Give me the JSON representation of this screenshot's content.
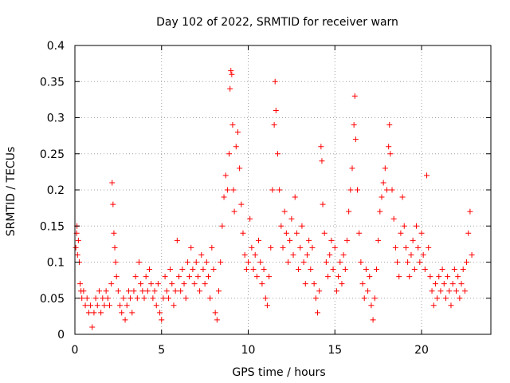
{
  "chart_data": {
    "type": "scatter",
    "title": "Day 102 of 2022, SRMTID for receiver warn",
    "xlabel": "GPS time / hours",
    "ylabel": "SRMTID / TECUs",
    "xlim": [
      0,
      24
    ],
    "ylim": [
      0,
      0.4
    ],
    "x_ticks": [
      0,
      5,
      10,
      15,
      20
    ],
    "x_tick_labels": [
      "0",
      "5",
      "10",
      "15",
      "20"
    ],
    "y_ticks": [
      0,
      0.05,
      0.1,
      0.15,
      0.2,
      0.25,
      0.3,
      0.35,
      0.4
    ],
    "y_tick_labels": [
      "0",
      "0.05",
      "0.1",
      "0.15",
      "0.2",
      "0.25",
      "0.3",
      "0.35",
      "0.4"
    ],
    "grid": true,
    "marker": "+",
    "series": [
      {
        "name": "SRMTID",
        "color": "#ff0000",
        "points": [
          [
            0.05,
            0.12
          ],
          [
            0.1,
            0.14
          ],
          [
            0.12,
            0.15
          ],
          [
            0.15,
            0.11
          ],
          [
            0.2,
            0.13
          ],
          [
            0.25,
            0.1
          ],
          [
            0.3,
            0.07
          ],
          [
            0.35,
            0.06
          ],
          [
            0.4,
            0.05
          ],
          [
            0.5,
            0.06
          ],
          [
            0.6,
            0.04
          ],
          [
            0.7,
            0.05
          ],
          [
            0.8,
            0.03
          ],
          [
            0.9,
            0.04
          ],
          [
            1.0,
            0.01
          ],
          [
            1.1,
            0.03
          ],
          [
            1.2,
            0.05
          ],
          [
            1.3,
            0.04
          ],
          [
            1.4,
            0.06
          ],
          [
            1.5,
            0.03
          ],
          [
            1.6,
            0.05
          ],
          [
            1.7,
            0.04
          ],
          [
            1.8,
            0.06
          ],
          [
            1.9,
            0.05
          ],
          [
            2.0,
            0.04
          ],
          [
            2.1,
            0.07
          ],
          [
            2.15,
            0.21
          ],
          [
            2.2,
            0.18
          ],
          [
            2.25,
            0.14
          ],
          [
            2.3,
            0.12
          ],
          [
            2.35,
            0.1
          ],
          [
            2.4,
            0.08
          ],
          [
            2.5,
            0.06
          ],
          [
            2.6,
            0.04
          ],
          [
            2.7,
            0.03
          ],
          [
            2.8,
            0.05
          ],
          [
            2.9,
            0.02
          ],
          [
            3.0,
            0.04
          ],
          [
            3.1,
            0.06
          ],
          [
            3.2,
            0.05
          ],
          [
            3.3,
            0.03
          ],
          [
            3.4,
            0.06
          ],
          [
            3.5,
            0.08
          ],
          [
            3.6,
            0.05
          ],
          [
            3.7,
            0.1
          ],
          [
            3.8,
            0.07
          ],
          [
            3.9,
            0.06
          ],
          [
            4.0,
            0.05
          ],
          [
            4.1,
            0.08
          ],
          [
            4.2,
            0.06
          ],
          [
            4.3,
            0.09
          ],
          [
            4.4,
            0.07
          ],
          [
            4.5,
            0.05
          ],
          [
            4.6,
            0.06
          ],
          [
            4.7,
            0.04
          ],
          [
            4.8,
            0.07
          ],
          [
            4.9,
            0.03
          ],
          [
            5.0,
            0.02
          ],
          [
            5.1,
            0.05
          ],
          [
            5.2,
            0.08
          ],
          [
            5.3,
            0.06
          ],
          [
            5.4,
            0.05
          ],
          [
            5.5,
            0.09
          ],
          [
            5.6,
            0.07
          ],
          [
            5.7,
            0.04
          ],
          [
            5.8,
            0.06
          ],
          [
            5.9,
            0.13
          ],
          [
            6.0,
            0.08
          ],
          [
            6.1,
            0.06
          ],
          [
            6.2,
            0.09
          ],
          [
            6.3,
            0.07
          ],
          [
            6.4,
            0.05
          ],
          [
            6.5,
            0.1
          ],
          [
            6.6,
            0.08
          ],
          [
            6.7,
            0.12
          ],
          [
            6.8,
            0.09
          ],
          [
            6.9,
            0.07
          ],
          [
            7.0,
            0.1
          ],
          [
            7.1,
            0.08
          ],
          [
            7.2,
            0.06
          ],
          [
            7.3,
            0.11
          ],
          [
            7.4,
            0.09
          ],
          [
            7.5,
            0.07
          ],
          [
            7.6,
            0.1
          ],
          [
            7.7,
            0.08
          ],
          [
            7.8,
            0.05
          ],
          [
            7.9,
            0.12
          ],
          [
            8.0,
            0.09
          ],
          [
            8.1,
            0.03
          ],
          [
            8.2,
            0.02
          ],
          [
            8.3,
            0.06
          ],
          [
            8.4,
            0.1
          ],
          [
            8.5,
            0.15
          ],
          [
            8.6,
            0.19
          ],
          [
            8.7,
            0.22
          ],
          [
            8.8,
            0.2
          ],
          [
            8.9,
            0.25
          ],
          [
            8.95,
            0.34
          ],
          [
            9.0,
            0.365
          ],
          [
            9.05,
            0.36
          ],
          [
            9.1,
            0.29
          ],
          [
            9.15,
            0.2
          ],
          [
            9.2,
            0.17
          ],
          [
            9.3,
            0.26
          ],
          [
            9.4,
            0.28
          ],
          [
            9.5,
            0.23
          ],
          [
            9.6,
            0.18
          ],
          [
            9.7,
            0.14
          ],
          [
            9.8,
            0.11
          ],
          [
            9.9,
            0.09
          ],
          [
            10.0,
            0.1
          ],
          [
            10.1,
            0.16
          ],
          [
            10.2,
            0.12
          ],
          [
            10.3,
            0.09
          ],
          [
            10.4,
            0.11
          ],
          [
            10.5,
            0.08
          ],
          [
            10.6,
            0.13
          ],
          [
            10.7,
            0.1
          ],
          [
            10.8,
            0.07
          ],
          [
            10.9,
            0.09
          ],
          [
            11.0,
            0.05
          ],
          [
            11.1,
            0.04
          ],
          [
            11.2,
            0.08
          ],
          [
            11.3,
            0.12
          ],
          [
            11.4,
            0.2
          ],
          [
            11.5,
            0.29
          ],
          [
            11.55,
            0.35
          ],
          [
            11.6,
            0.31
          ],
          [
            11.7,
            0.25
          ],
          [
            11.8,
            0.2
          ],
          [
            11.9,
            0.15
          ],
          [
            12.0,
            0.12
          ],
          [
            12.1,
            0.17
          ],
          [
            12.2,
            0.14
          ],
          [
            12.3,
            0.1
          ],
          [
            12.4,
            0.13
          ],
          [
            12.5,
            0.16
          ],
          [
            12.6,
            0.11
          ],
          [
            12.7,
            0.19
          ],
          [
            12.8,
            0.14
          ],
          [
            12.9,
            0.09
          ],
          [
            13.0,
            0.12
          ],
          [
            13.1,
            0.15
          ],
          [
            13.2,
            0.1
          ],
          [
            13.3,
            0.07
          ],
          [
            13.4,
            0.11
          ],
          [
            13.5,
            0.13
          ],
          [
            13.6,
            0.09
          ],
          [
            13.7,
            0.12
          ],
          [
            13.8,
            0.07
          ],
          [
            13.9,
            0.05
          ],
          [
            14.0,
            0.03
          ],
          [
            14.1,
            0.06
          ],
          [
            14.2,
            0.26
          ],
          [
            14.25,
            0.24
          ],
          [
            14.3,
            0.18
          ],
          [
            14.4,
            0.14
          ],
          [
            14.5,
            0.1
          ],
          [
            14.6,
            0.08
          ],
          [
            14.7,
            0.11
          ],
          [
            14.8,
            0.13
          ],
          [
            14.9,
            0.09
          ],
          [
            15.0,
            0.12
          ],
          [
            15.1,
            0.06
          ],
          [
            15.2,
            0.08
          ],
          [
            15.3,
            0.1
          ],
          [
            15.4,
            0.07
          ],
          [
            15.5,
            0.11
          ],
          [
            15.6,
            0.09
          ],
          [
            15.7,
            0.13
          ],
          [
            15.8,
            0.17
          ],
          [
            15.9,
            0.2
          ],
          [
            16.0,
            0.23
          ],
          [
            16.1,
            0.29
          ],
          [
            16.15,
            0.33
          ],
          [
            16.2,
            0.27
          ],
          [
            16.3,
            0.2
          ],
          [
            16.4,
            0.14
          ],
          [
            16.5,
            0.1
          ],
          [
            16.6,
            0.07
          ],
          [
            16.7,
            0.05
          ],
          [
            16.8,
            0.09
          ],
          [
            16.9,
            0.06
          ],
          [
            17.0,
            0.08
          ],
          [
            17.1,
            0.04
          ],
          [
            17.2,
            0.02
          ],
          [
            17.3,
            0.05
          ],
          [
            17.4,
            0.09
          ],
          [
            17.5,
            0.13
          ],
          [
            17.6,
            0.17
          ],
          [
            17.7,
            0.19
          ],
          [
            17.8,
            0.21
          ],
          [
            17.9,
            0.23
          ],
          [
            18.0,
            0.2
          ],
          [
            18.1,
            0.26
          ],
          [
            18.15,
            0.29
          ],
          [
            18.2,
            0.25
          ],
          [
            18.3,
            0.2
          ],
          [
            18.4,
            0.16
          ],
          [
            18.5,
            0.12
          ],
          [
            18.6,
            0.1
          ],
          [
            18.7,
            0.08
          ],
          [
            18.8,
            0.14
          ],
          [
            18.9,
            0.19
          ],
          [
            19.0,
            0.15
          ],
          [
            19.1,
            0.12
          ],
          [
            19.2,
            0.1
          ],
          [
            19.3,
            0.08
          ],
          [
            19.4,
            0.11
          ],
          [
            19.5,
            0.13
          ],
          [
            19.6,
            0.09
          ],
          [
            19.7,
            0.15
          ],
          [
            19.8,
            0.12
          ],
          [
            19.9,
            0.1
          ],
          [
            20.0,
            0.14
          ],
          [
            20.1,
            0.11
          ],
          [
            20.2,
            0.09
          ],
          [
            20.3,
            0.22
          ],
          [
            20.4,
            0.12
          ],
          [
            20.5,
            0.08
          ],
          [
            20.6,
            0.06
          ],
          [
            20.7,
            0.04
          ],
          [
            20.8,
            0.07
          ],
          [
            20.9,
            0.05
          ],
          [
            21.0,
            0.08
          ],
          [
            21.1,
            0.06
          ],
          [
            21.2,
            0.09
          ],
          [
            21.3,
            0.07
          ],
          [
            21.4,
            0.05
          ],
          [
            21.5,
            0.08
          ],
          [
            21.6,
            0.06
          ],
          [
            21.7,
            0.04
          ],
          [
            21.8,
            0.07
          ],
          [
            21.9,
            0.09
          ],
          [
            22.0,
            0.06
          ],
          [
            22.1,
            0.08
          ],
          [
            22.2,
            0.05
          ],
          [
            22.3,
            0.07
          ],
          [
            22.4,
            0.09
          ],
          [
            22.5,
            0.06
          ],
          [
            22.6,
            0.1
          ],
          [
            22.7,
            0.14
          ],
          [
            22.8,
            0.17
          ],
          [
            22.9,
            0.11
          ]
        ]
      }
    ]
  }
}
